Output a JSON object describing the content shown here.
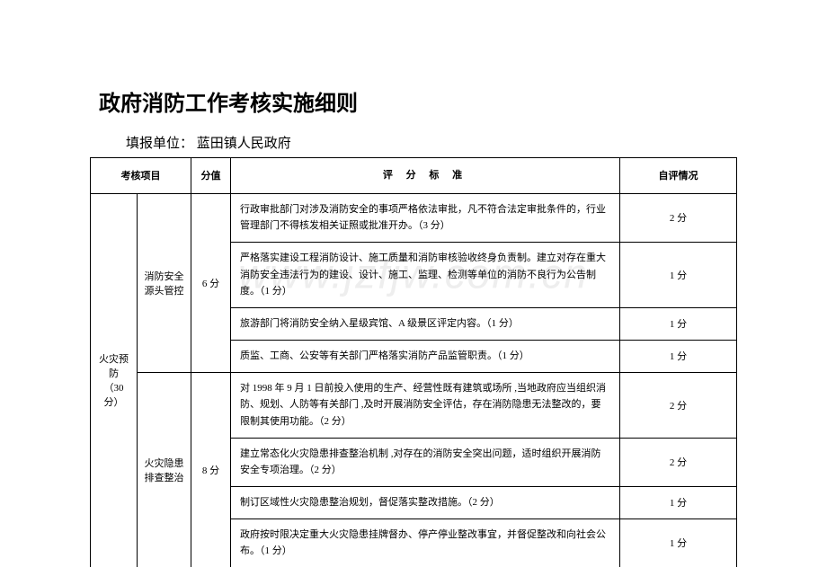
{
  "watermark": "www.jzfjw.com.cn",
  "title": "政府消防工作考核实施细则",
  "subtitle_label": "填报单位：",
  "subtitle_value": " 蓝田镇人民政府",
  "headers": {
    "project": "考核项目",
    "score": "分值",
    "criteria": "评 分 标 准",
    "self_eval": "自评情况"
  },
  "main_category": {
    "name": "火灾预防",
    "total": "（30 分）"
  },
  "groups": [
    {
      "name": "消防安全源头管控",
      "score": "6 分",
      "rows": [
        {
          "criteria": "行政审批部门对涉及消防安全的事项严格依法审批，凡不符合法定审批条件的，行业管理部门不得核发相关证照或批准开办。（3 分）",
          "self": "2 分"
        },
        {
          "criteria": "严格落实建设工程消防设计、施工质量和消防审核验收终身负责制。建立对存在重大消防安全违法行为的建设、设计、施工、监理、检测等单位的消防不良行为公告制度。（1 分）",
          "self": "1 分"
        },
        {
          "criteria": "旅游部门将消防安全纳入星级宾馆、A 级景区评定内容。（1 分）",
          "self": "1 分"
        },
        {
          "criteria": "质监、工商、公安等有关部门严格落实消防产品监管职责。（1 分）",
          "self": "1 分"
        }
      ]
    },
    {
      "name": "火灾隐患排查整治",
      "score": "8 分",
      "rows": [
        {
          "criteria": "对 1998 年 9 月 1 日前投入使用的生产、经营性既有建筑或场所 ,当地政府应当组织消防、规划、人防等有关部门 ,及时开展消防安全评估，存在消防隐患无法整改的，要限制其使用功能。（2 分）",
          "self": "2 分"
        },
        {
          "criteria": "建立常态化火灾隐患排查整治机制 ,对存在的消防安全突出问题，适时组织开展消防安全专项治理。（2 分）",
          "self": "2 分"
        },
        {
          "criteria": "制订区域性火灾隐患整治规划，督促落实整改措施。（2 分）",
          "self": "1 分"
        },
        {
          "criteria": "政府按时限决定重大火灾隐患挂牌督办、停产停业整改事宜，并督促整改和向社会公布。（1 分）",
          "self": "1 分"
        }
      ]
    }
  ]
}
